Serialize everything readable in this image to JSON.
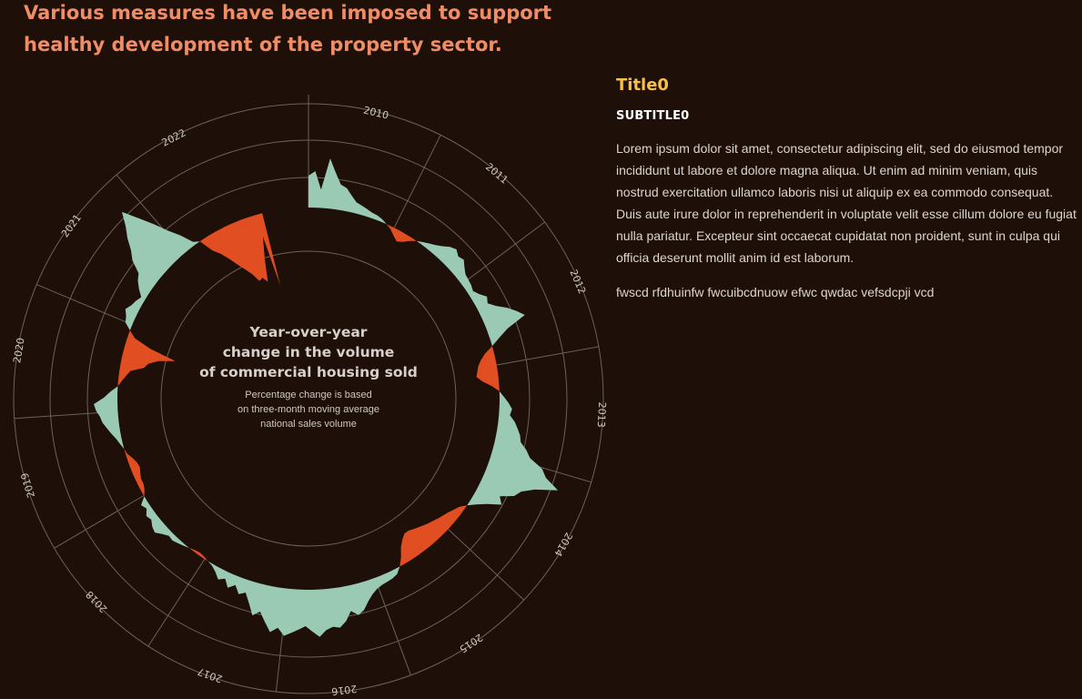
{
  "headline": "Various measures have been imposed to support healthy development of the property sector.",
  "side_panel": {
    "title": "Title0",
    "subtitle": "SUBTITLE0",
    "body": "Lorem ipsum dolor sit amet, consectetur adipiscing elit, sed do eiusmod tempor incididunt ut labore et dolore magna aliqua. Ut enim ad minim veniam, quis nostrud exercitation ullamco laboris nisi ut aliquip ex ea commodo consequat. Duis aute irure dolor in reprehenderit in voluptate velit esse cillum dolore eu fugiat nulla pariatur. Excepteur sint occaecat cupidatat non proident, sunt in culpa qui officia deserunt mollit anim id est laborum.",
    "note": "fwscd rfdhuinfw fwcuibcdnuow efwc qwdac vefsdcpji vcd"
  },
  "colors": {
    "background": "#1e0f08",
    "headline": "#f08c66",
    "positive": "#9ac9b4",
    "negative": "#e04e22",
    "grid": "#6b625c",
    "title": "#f6c04a"
  },
  "chart_data": {
    "type": "area",
    "layout": "radial",
    "title": "Year-over-year change in the volume of commercial housing sold",
    "title_lines": [
      "Year-over-year",
      "change in the volume",
      "of commercial housing sold"
    ],
    "subtitle": "Percentage change is based on three-month moving average national sales volume",
    "subtitle_lines": [
      "Percentage change is based",
      "on three-month moving average",
      "national sales volume"
    ],
    "years": [
      "2010",
      "2011",
      "2012",
      "2013",
      "2014",
      "2015",
      "2016",
      "2017",
      "2018",
      "2019",
      "2020",
      "2021",
      "2022"
    ],
    "x_start": "2010-01",
    "x_end": "2022-12",
    "values": [
      35,
      40,
      20,
      55,
      40,
      28,
      25,
      18,
      12,
      10,
      8,
      6,
      5,
      3,
      0,
      -3,
      -8,
      -12,
      -9,
      -4,
      0,
      3,
      6,
      9,
      13,
      18,
      21,
      17,
      19,
      14,
      10,
      9,
      8,
      6,
      10,
      16,
      13,
      20,
      30,
      38,
      45,
      22,
      10,
      0,
      -10,
      -16,
      -20,
      -22,
      -24,
      -18,
      -8,
      0,
      5,
      10,
      14,
      12,
      18,
      22,
      26,
      28,
      36,
      42,
      58,
      65,
      82,
      58,
      45,
      40,
      26,
      32,
      18,
      8,
      0,
      -6,
      -9,
      -12,
      -14,
      -16,
      -18,
      -20,
      -22,
      -24,
      -26,
      -28,
      -28,
      -24,
      -18,
      -8,
      0,
      6,
      8,
      9,
      10,
      12,
      16,
      22,
      30,
      34,
      28,
      38,
      44,
      42,
      45,
      52,
      46,
      40,
      44,
      48,
      52,
      44,
      50,
      40,
      30,
      36,
      24,
      14,
      18,
      10,
      16,
      8,
      12,
      6,
      2,
      0,
      -2,
      -3,
      -2,
      0,
      2,
      4,
      6,
      5,
      9,
      14,
      12,
      8,
      10,
      5,
      8,
      0,
      -4,
      -6,
      -6,
      -8,
      -10,
      -9,
      -6,
      -2,
      0,
      3,
      6,
      10,
      14,
      18,
      20,
      24,
      26,
      15,
      8,
      0,
      -4,
      -8,
      -12,
      -26,
      -30,
      -40,
      -58,
      -28,
      -8,
      0,
      8,
      10,
      14,
      10,
      8,
      5,
      12,
      18,
      22,
      36,
      44,
      56,
      66,
      80,
      62,
      46,
      30,
      18,
      4,
      0,
      -16,
      -24,
      -34,
      -44,
      -52,
      -60,
      -70,
      -68,
      -74,
      -50,
      -25,
      -82
    ]
  }
}
